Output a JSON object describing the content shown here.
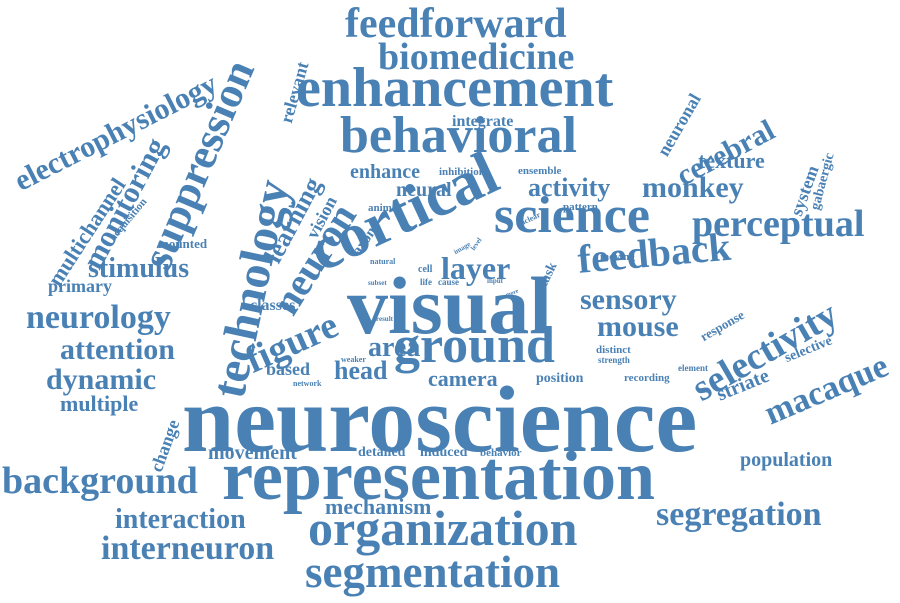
{
  "accent_color": "#4a81b4",
  "words": [
    {
      "text": "neuroscience"
    },
    {
      "text": "representation"
    },
    {
      "text": "visual"
    },
    {
      "text": "cortical"
    },
    {
      "text": "enhancement"
    },
    {
      "text": "behavioral"
    },
    {
      "text": "organization"
    },
    {
      "text": "segmentation"
    },
    {
      "text": "ground"
    },
    {
      "text": "science"
    },
    {
      "text": "technology"
    },
    {
      "text": "suppression"
    },
    {
      "text": "feedback"
    },
    {
      "text": "selectivity"
    },
    {
      "text": "feedforward"
    },
    {
      "text": "biomedicine"
    },
    {
      "text": "background"
    },
    {
      "text": "perceptual"
    },
    {
      "text": "neurology"
    },
    {
      "text": "interneuron"
    },
    {
      "text": "segregation"
    },
    {
      "text": "interaction"
    },
    {
      "text": "electrophysiology"
    },
    {
      "text": "monitoring"
    },
    {
      "text": "neuron"
    },
    {
      "text": "figure"
    },
    {
      "text": "macaque"
    },
    {
      "text": "monkey"
    },
    {
      "text": "mouse"
    },
    {
      "text": "sensory"
    },
    {
      "text": "layer"
    },
    {
      "text": "stimulus"
    },
    {
      "text": "attention"
    },
    {
      "text": "dynamic"
    },
    {
      "text": "activity"
    },
    {
      "text": "cerebral"
    },
    {
      "text": "area"
    },
    {
      "text": "head"
    },
    {
      "text": "learning"
    },
    {
      "text": "multichannel"
    },
    {
      "text": "mechanism"
    },
    {
      "text": "multiple"
    },
    {
      "text": "movement"
    },
    {
      "text": "population"
    },
    {
      "text": "camera"
    },
    {
      "text": "texture"
    },
    {
      "text": "striate"
    },
    {
      "text": "enhance"
    },
    {
      "text": "neural"
    },
    {
      "text": "primary"
    },
    {
      "text": "change"
    },
    {
      "text": "vision"
    },
    {
      "text": "relevant"
    },
    {
      "text": "integrate"
    },
    {
      "text": "neuronal"
    },
    {
      "text": "based"
    },
    {
      "text": "classes"
    },
    {
      "text": "axon"
    },
    {
      "text": "system"
    },
    {
      "text": "gabaergic"
    },
    {
      "text": "detailed"
    },
    {
      "text": "induced"
    },
    {
      "text": "selective"
    },
    {
      "text": "position"
    },
    {
      "text": "response"
    },
    {
      "text": "task"
    },
    {
      "text": "mounted"
    },
    {
      "text": "acquisition"
    },
    {
      "text": "behavior"
    },
    {
      "text": "inhibition"
    },
    {
      "text": "ensemble"
    },
    {
      "text": "animal"
    },
    {
      "text": "pattern"
    },
    {
      "text": "moving"
    },
    {
      "text": "distinct"
    },
    {
      "text": "recording"
    },
    {
      "text": "strength"
    },
    {
      "text": "element"
    },
    {
      "text": "natural"
    },
    {
      "text": "cell"
    },
    {
      "text": "life"
    },
    {
      "text": "cause"
    },
    {
      "text": "input"
    },
    {
      "text": "image"
    },
    {
      "text": "level"
    },
    {
      "text": "unclear"
    },
    {
      "text": "subset"
    },
    {
      "text": "more"
    },
    {
      "text": "result"
    },
    {
      "text": "weaker"
    },
    {
      "text": "network"
    }
  ]
}
